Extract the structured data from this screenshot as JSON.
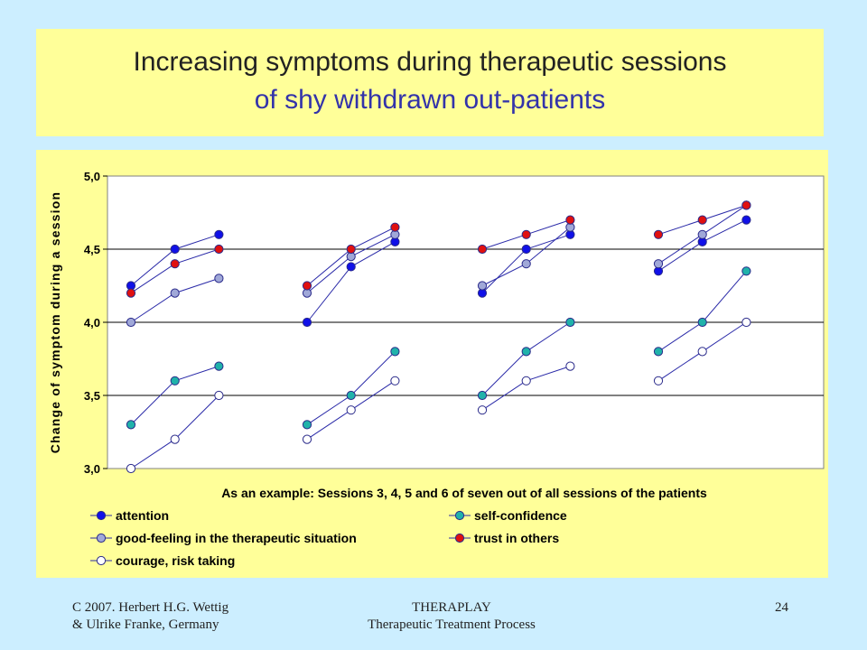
{
  "slide": {
    "title_line1": "Increasing symptoms during therapeutic sessions",
    "title_line2": "of shy withdrawn out-patients",
    "footer_left_1": "C 2007. Herbert H.G. Wettig",
    "footer_left_2": "& Ulrike Franke, Germany",
    "footer_center_1": "THERAPLAY",
    "footer_center_2": "Therapeutic Treatment Process",
    "page_number": "24",
    "colors": {
      "background": "#cceeff",
      "title_box": "#ffff99",
      "title_line1": "#222222",
      "title_line2": "#3333aa"
    }
  },
  "chart_data": {
    "type": "line",
    "title": "",
    "xlabel": "As an example: Sessions 3, 4, 5 and 6 of seven out of all sessions of the patients",
    "ylabel": "Change of symptom during a session",
    "ylim": [
      3.0,
      5.0
    ],
    "yticks": [
      "3,0",
      "3,5",
      "4,0",
      "4,5",
      "5,0"
    ],
    "grid": "horizontal",
    "legend_position": "bottom",
    "groups": 4,
    "points_per_group": 3,
    "series": [
      {
        "name": "attention",
        "color": "#1010e8",
        "values": [
          [
            4.25,
            4.5,
            4.6
          ],
          [
            4.0,
            4.38,
            4.55
          ],
          [
            4.2,
            4.5,
            4.6
          ],
          [
            4.35,
            4.55,
            4.7
          ]
        ]
      },
      {
        "name": "self-confidence",
        "color": "#20b2aa",
        "values": [
          [
            3.3,
            3.6,
            3.7
          ],
          [
            3.3,
            3.5,
            3.8
          ],
          [
            3.5,
            3.8,
            4.0
          ],
          [
            3.8,
            4.0,
            4.35
          ]
        ]
      },
      {
        "name": "good-feeling in the therapeutic situation",
        "color": "#a0a8d8",
        "values": [
          [
            4.0,
            4.2,
            4.3
          ],
          [
            4.2,
            4.45,
            4.6
          ],
          [
            4.25,
            4.4,
            4.65
          ],
          [
            4.4,
            4.6,
            4.8
          ]
        ]
      },
      {
        "name": "trust in others",
        "color": "#e01010",
        "values": [
          [
            4.2,
            4.4,
            4.5
          ],
          [
            4.25,
            4.5,
            4.65
          ],
          [
            4.5,
            4.6,
            4.7
          ],
          [
            4.6,
            4.7,
            4.8
          ]
        ]
      },
      {
        "name": "courage, risk taking",
        "color": "#ffffff",
        "values": [
          [
            3.0,
            3.2,
            3.5
          ],
          [
            3.2,
            3.4,
            3.6
          ],
          [
            3.4,
            3.6,
            3.7
          ],
          [
            3.6,
            3.8,
            4.0
          ]
        ]
      }
    ]
  }
}
